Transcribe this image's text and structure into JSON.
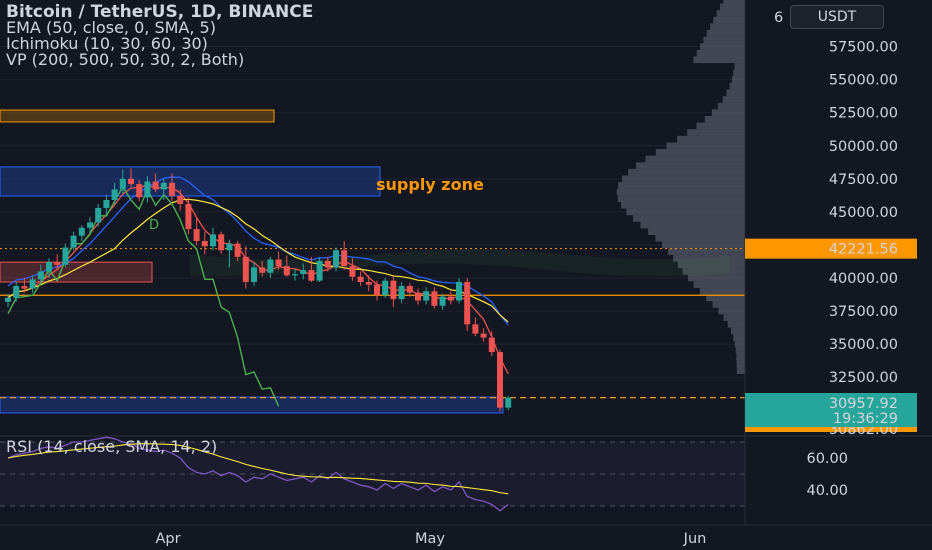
{
  "legend": {
    "title": "Bitcoin / TetherUS, 1D, BINANCE",
    "ema": "EMA (50, close, 0, SMA, 5)",
    "ichimoku": "Ichimoku (10, 30, 60, 30)",
    "vp": "VP (200, 500, 50, 30, 2, Both)"
  },
  "currency_button": "USDT",
  "rsi_legend": "RSI (14, close, SMA, 14, 2)",
  "annotation": "supply zone",
  "colors": {
    "background": "#131722",
    "up": "#26a69a",
    "down": "#ef5350",
    "supply_zone": "#2962ff",
    "orange_line": "#ff9800",
    "yellow": "#ffeb3b",
    "rsi_line": "#7e57c2",
    "ichimoku_green": "#4caf50",
    "ichimoku_blue": "#2962ff"
  },
  "chart_data": {
    "type": "candlestick",
    "price_axis": {
      "ticks": [
        57500,
        55000,
        52500,
        50000,
        47500,
        45000,
        42500,
        40000,
        37500,
        35000,
        32500
      ],
      "tick_labels": [
        "57500.00",
        "55000.00",
        "52500.00",
        "50000.00",
        "47500.00",
        "45000.00",
        "",
        "40000.00",
        "37500.00",
        "35000.00",
        "32500.00"
      ],
      "top_partial_label": "6"
    },
    "time_axis": {
      "labels": [
        "Apr",
        "May",
        "Jun"
      ]
    },
    "price_markers": [
      {
        "label": "42221.56",
        "value": 42221.56,
        "color": "#ff9800",
        "text_color": "#131722"
      },
      {
        "label": "30957.92",
        "countdown": "19:36:29",
        "value": 30957.92,
        "color": "#26a69a",
        "text_color": "#ffffff"
      },
      {
        "label": "30862.00",
        "value": 30862.0,
        "color": "#ff9800",
        "text_color": "#131722"
      }
    ],
    "horizontal_lines": [
      {
        "value": 38700,
        "color": "#ff9800",
        "style": "solid"
      },
      {
        "value": 30957.92,
        "color": "#ff9800",
        "style": "dashed"
      }
    ],
    "zones": [
      {
        "name": "supply zone",
        "from": 46200,
        "to": 48400,
        "color": "#2962ff"
      },
      {
        "name": "orange zone",
        "from": 51800,
        "to": 52700,
        "color": "#ff9800"
      },
      {
        "name": "red zone",
        "from": 39700,
        "to": 41200,
        "color": "#ef5350"
      },
      {
        "name": "demand zone",
        "from": 29800,
        "to": 31000,
        "color": "#2962ff"
      }
    ],
    "candles_ohlc": [
      [
        38200,
        38800,
        37800,
        38500
      ],
      [
        38500,
        39700,
        38200,
        39400
      ],
      [
        39400,
        40000,
        38900,
        39200
      ],
      [
        39200,
        40200,
        38900,
        39900
      ],
      [
        39900,
        41000,
        39700,
        40500
      ],
      [
        40500,
        41500,
        40000,
        41200
      ],
      [
        41200,
        41800,
        40600,
        41000
      ],
      [
        41000,
        42600,
        40800,
        42300
      ],
      [
        42300,
        43500,
        42100,
        43200
      ],
      [
        43200,
        44000,
        42800,
        43800
      ],
      [
        43800,
        44600,
        43400,
        44200
      ],
      [
        44200,
        45600,
        43900,
        45300
      ],
      [
        45300,
        46300,
        44800,
        45900
      ],
      [
        45900,
        47200,
        45600,
        46700
      ],
      [
        46700,
        48200,
        46400,
        47500
      ],
      [
        47500,
        48300,
        46900,
        47100
      ],
      [
        47100,
        47400,
        45800,
        46100
      ],
      [
        46100,
        47700,
        45700,
        47300
      ],
      [
        47300,
        47900,
        46500,
        46700
      ],
      [
        46700,
        47500,
        45900,
        47200
      ],
      [
        47200,
        47900,
        45800,
        46200
      ],
      [
        46200,
        46700,
        45100,
        45600
      ],
      [
        45600,
        46100,
        43300,
        43700
      ],
      [
        43700,
        44500,
        42500,
        42800
      ],
      [
        42800,
        43500,
        41800,
        42400
      ],
      [
        42400,
        43800,
        42100,
        43300
      ],
      [
        43300,
        43500,
        41800,
        42100
      ],
      [
        42100,
        42900,
        40800,
        42600
      ],
      [
        42600,
        42800,
        41300,
        41600
      ],
      [
        41600,
        42400,
        39200,
        39700
      ],
      [
        39700,
        41200,
        39400,
        40800
      ],
      [
        40800,
        41300,
        40100,
        40400
      ],
      [
        40400,
        41600,
        40000,
        41400
      ],
      [
        41400,
        42000,
        40600,
        40900
      ],
      [
        40900,
        41700,
        40100,
        40200
      ],
      [
        40200,
        40700,
        39800,
        40300
      ],
      [
        40300,
        41100,
        39900,
        40600
      ],
      [
        40600,
        41600,
        39700,
        39800
      ],
      [
        39800,
        41600,
        39700,
        41300
      ],
      [
        41300,
        41600,
        40500,
        40800
      ],
      [
        40800,
        42300,
        40500,
        42100
      ],
      [
        42100,
        42800,
        40600,
        40900
      ],
      [
        40900,
        41500,
        39800,
        40100
      ],
      [
        40100,
        40500,
        39400,
        39700
      ],
      [
        39700,
        40200,
        39000,
        39500
      ],
      [
        39500,
        39800,
        38300,
        38700
      ],
      [
        38700,
        40000,
        38500,
        39800
      ],
      [
        39800,
        40100,
        37800,
        38400
      ],
      [
        38400,
        39700,
        38100,
        39400
      ],
      [
        39400,
        39600,
        38600,
        38900
      ],
      [
        38900,
        39200,
        38000,
        38300
      ],
      [
        38300,
        39300,
        38000,
        39000
      ],
      [
        39000,
        39300,
        37700,
        37900
      ],
      [
        37900,
        38800,
        37600,
        38600
      ],
      [
        38600,
        39000,
        38000,
        38300
      ],
      [
        38300,
        40000,
        38100,
        39700
      ],
      [
        39700,
        40000,
        36000,
        36500
      ],
      [
        36500,
        37000,
        35600,
        35800
      ],
      [
        35800,
        36200,
        35200,
        35500
      ],
      [
        35500,
        36000,
        34100,
        34400
      ],
      [
        34400,
        34600,
        29900,
        30200
      ],
      [
        30200,
        31100,
        30000,
        30958
      ]
    ],
    "rsi_axis": {
      "ticks": [
        60,
        40
      ],
      "tick_labels": [
        "60.00",
        "40.00"
      ]
    },
    "rsi_values": [
      60,
      62,
      63,
      64,
      66,
      67,
      66,
      68,
      70,
      70,
      71,
      72,
      73,
      72,
      70,
      69,
      66,
      65,
      64,
      65,
      63,
      60,
      54,
      51,
      50,
      52,
      49,
      51,
      49,
      45,
      48,
      47,
      50,
      48,
      46,
      47,
      48,
      45,
      49,
      47,
      51,
      47,
      45,
      43,
      42,
      40,
      44,
      41,
      44,
      42,
      40,
      43,
      39,
      42,
      40,
      45,
      36,
      34,
      33,
      31,
      27,
      31
    ]
  }
}
